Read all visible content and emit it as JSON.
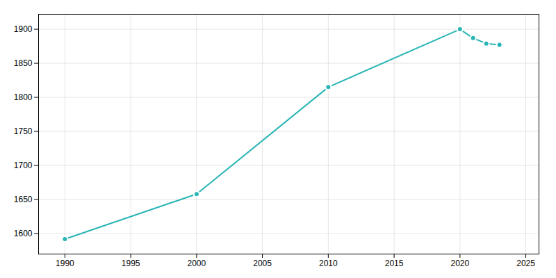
{
  "chart_data": {
    "type": "line",
    "x": [
      1990,
      2000,
      2010,
      2020,
      2021,
      2022,
      2023
    ],
    "values": [
      1592,
      1658,
      1815,
      1900,
      1887,
      1879,
      1877
    ],
    "color": "#2ab5b5",
    "marker": "circle",
    "xlim": [
      1988,
      2026
    ],
    "ylim": [
      1570,
      1922
    ],
    "xticks": [
      1990,
      1995,
      2000,
      2005,
      2010,
      2015,
      2020,
      2025
    ],
    "yticks": [
      1600,
      1650,
      1700,
      1750,
      1800,
      1850,
      1900
    ],
    "grid": true
  }
}
